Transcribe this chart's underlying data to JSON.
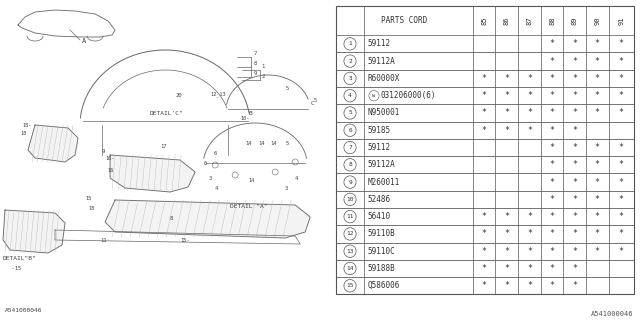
{
  "catalog_code": "A541000046",
  "bg_color": "#ffffff",
  "rows": [
    {
      "num": "1",
      "part": "59112",
      "cols": [
        "",
        "",
        "",
        "*",
        "*",
        "*",
        "*"
      ]
    },
    {
      "num": "2",
      "part": "59112A",
      "cols": [
        "",
        "",
        "",
        "*",
        "*",
        "*",
        "*"
      ]
    },
    {
      "num": "3",
      "part": "R60000X",
      "cols": [
        "*",
        "*",
        "*",
        "*",
        "*",
        "*",
        "*"
      ]
    },
    {
      "num": "4",
      "part": "031206000(6)",
      "cols": [
        "*",
        "*",
        "*",
        "*",
        "*",
        "*",
        "*"
      ],
      "prefix_w": true
    },
    {
      "num": "5",
      "part": "N950001",
      "cols": [
        "*",
        "*",
        "*",
        "*",
        "*",
        "*",
        "*"
      ]
    },
    {
      "num": "6",
      "part": "59185",
      "cols": [
        "*",
        "*",
        "*",
        "*",
        "*",
        "",
        ""
      ]
    },
    {
      "num": "7",
      "part": "59112",
      "cols": [
        "",
        "",
        "",
        "*",
        "*",
        "*",
        "*"
      ]
    },
    {
      "num": "8",
      "part": "59112A",
      "cols": [
        "",
        "",
        "",
        "*",
        "*",
        "*",
        "*"
      ]
    },
    {
      "num": "9",
      "part": "M260011",
      "cols": [
        "",
        "",
        "",
        "*",
        "*",
        "*",
        "*"
      ]
    },
    {
      "num": "10",
      "part": "52486",
      "cols": [
        "",
        "",
        "",
        "*",
        "*",
        "*",
        "*"
      ]
    },
    {
      "num": "11",
      "part": "56410",
      "cols": [
        "*",
        "*",
        "*",
        "*",
        "*",
        "*",
        "*"
      ]
    },
    {
      "num": "12",
      "part": "59110B",
      "cols": [
        "*",
        "*",
        "*",
        "*",
        "*",
        "*",
        "*"
      ]
    },
    {
      "num": "13",
      "part": "59110C",
      "cols": [
        "*",
        "*",
        "*",
        "*",
        "*",
        "*",
        "*"
      ]
    },
    {
      "num": "14",
      "part": "59188B",
      "cols": [
        "*",
        "*",
        "*",
        "*",
        "*",
        "",
        ""
      ]
    },
    {
      "num": "15",
      "part": "Q586006",
      "cols": [
        "*",
        "*",
        "*",
        "*",
        "*",
        "",
        ""
      ]
    }
  ],
  "year_cols": [
    "85",
    "86",
    "87",
    "88",
    "89",
    "90",
    "91"
  ],
  "line_color": "#555555",
  "text_color": "#333333",
  "font_size_part": 5.5,
  "font_size_num": 4.5,
  "font_size_header": 5.5,
  "font_size_year": 5.0,
  "font_size_asterisk": 6.0
}
